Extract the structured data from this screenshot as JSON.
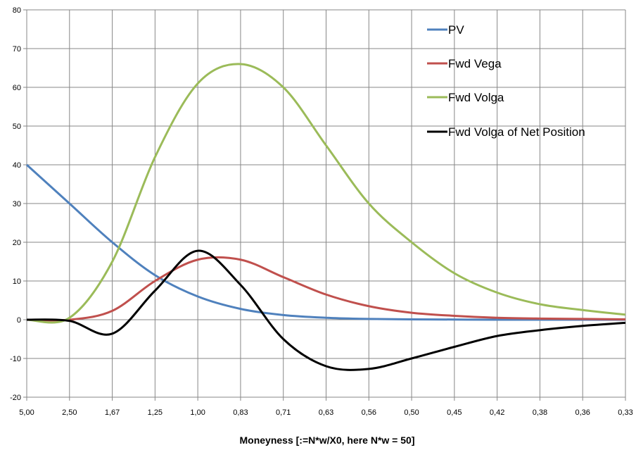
{
  "chart_data": {
    "type": "line",
    "xlabel": "Moneyness  [:=N*w/X0,  here N*w = 50]",
    "ylabel": "",
    "title": "",
    "categories": [
      "5,00",
      "2,50",
      "1,67",
      "1,25",
      "1,00",
      "0,83",
      "0,71",
      "0,63",
      "0,56",
      "0,50",
      "0,45",
      "0,42",
      "0,38",
      "0,36",
      "0,33"
    ],
    "x": [
      0,
      1,
      2,
      3,
      4,
      5,
      6,
      7,
      8,
      9,
      10,
      11,
      12,
      13,
      14
    ],
    "ylim": [
      -20,
      80
    ],
    "yticks": [
      -20,
      -10,
      0,
      10,
      20,
      30,
      40,
      50,
      60,
      70,
      80
    ],
    "grid": true,
    "legend_position": "top-right",
    "series": [
      {
        "name": "PV",
        "color": "#4f81bd",
        "values": [
          40,
          30,
          20,
          11.5,
          6,
          2.8,
          1.2,
          0.5,
          0.2,
          0.1,
          0.05,
          0,
          0,
          0,
          0
        ]
      },
      {
        "name": "Fwd Vega",
        "color": "#c0504d",
        "values": [
          0,
          0,
          2.3,
          10,
          15.5,
          15.5,
          11,
          6.5,
          3.5,
          1.8,
          1,
          0.5,
          0.3,
          0.2,
          0.1
        ]
      },
      {
        "name": "Fwd Volga",
        "color": "#9bbb59",
        "values": [
          0,
          0.5,
          15,
          42,
          61,
          66,
          60,
          45,
          30,
          20,
          12,
          7,
          4,
          2.5,
          1.3
        ]
      },
      {
        "name": "Fwd Volga of Net Position",
        "color": "#000000",
        "values": [
          0,
          -0.3,
          -3.6,
          7.5,
          17.8,
          9,
          -5,
          -12,
          -12.7,
          -10,
          -7,
          -4.2,
          -2.7,
          -1.6,
          -0.8
        ]
      }
    ]
  }
}
